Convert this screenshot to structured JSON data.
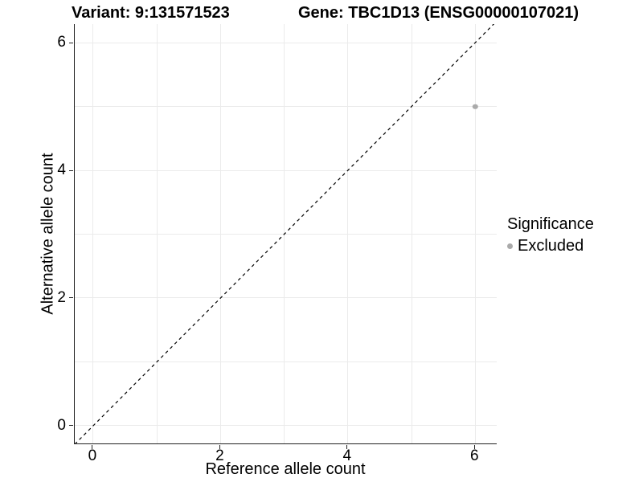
{
  "titles": {
    "variant": "Variant: 9:131571523",
    "gene": "Gene: TBC1D13 (ENSG00000107021)"
  },
  "legend": {
    "title": "Significance",
    "items": [
      {
        "label": "Excluded",
        "color": "#aaaaaa"
      }
    ]
  },
  "chart_data": {
    "type": "scatter",
    "title": "Variant: 9:131571523   Gene: TBC1D13 (ENSG00000107021)",
    "xlabel": "Reference allele count",
    "ylabel": "Alternative allele count",
    "xlim": [
      -0.29,
      6.35
    ],
    "ylim": [
      -0.29,
      6.29
    ],
    "xticks": [
      0,
      2,
      4,
      6
    ],
    "yticks": [
      0,
      2,
      4,
      6
    ],
    "grid_x": [
      0,
      1,
      2,
      3,
      4,
      5,
      6
    ],
    "grid_y": [
      0,
      1,
      2,
      3,
      4,
      5,
      6
    ],
    "grid_on": true,
    "legend_position": "right",
    "series": [
      {
        "name": "Excluded",
        "color": "#aaaaaa",
        "point_radius": 3.2,
        "points": [
          [
            6,
            5
          ]
        ]
      }
    ],
    "reference_line": {
      "kind": "identity-diagonal",
      "style": "dashed",
      "color": "#000000"
    }
  },
  "colors": {
    "background": "#ffffff",
    "panel_background": "#ffffff",
    "gridline": "#ebebeb",
    "axis_line": "#222222",
    "text": "#000000",
    "excluded_point": "#aaaaaa"
  }
}
